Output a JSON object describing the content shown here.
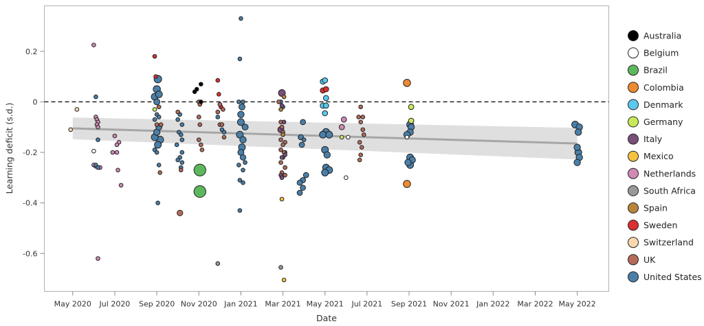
{
  "chart_data": {
    "type": "scatter",
    "title": "",
    "xlabel": "Date",
    "ylabel": "Learning deficit (s.d.)",
    "x_unit": "months since Jan 2020",
    "xlim": [
      2.65,
      29.5
    ],
    "ylim": [
      -0.75,
      0.38
    ],
    "x_ticks": [
      {
        "value": 4,
        "label": "May 2020"
      },
      {
        "value": 6,
        "label": "Jul 2020"
      },
      {
        "value": 8,
        "label": "Sep 2020"
      },
      {
        "value": 10,
        "label": "Nov 2020"
      },
      {
        "value": 12,
        "label": "Jan 2021"
      },
      {
        "value": 14,
        "label": "Mar 2021"
      },
      {
        "value": 16,
        "label": "May 2021"
      },
      {
        "value": 18,
        "label": "Jul 2021"
      },
      {
        "value": 20,
        "label": "Sep 2021"
      },
      {
        "value": 22,
        "label": "Nov 2021"
      },
      {
        "value": 24,
        "label": "Jan 2022"
      },
      {
        "value": 26,
        "label": "Mar 2022"
      },
      {
        "value": 28,
        "label": "May 2022"
      }
    ],
    "y_ticks": [
      {
        "value": 0.2,
        "label": "0.2"
      },
      {
        "value": 0,
        "label": "0"
      },
      {
        "value": -0.2,
        "label": "-0.2"
      },
      {
        "value": -0.4,
        "label": "-0.4"
      },
      {
        "value": -0.6,
        "label": "-0.6"
      }
    ],
    "reference_line": {
      "y": 0,
      "style": "dashed"
    },
    "trend": {
      "x0": 4.0,
      "x1": 28.0,
      "y0": -0.105,
      "y1": -0.165,
      "ci_lower0": -0.148,
      "ci_upper0": -0.062,
      "ci_lower1": -0.228,
      "ci_upper1": -0.103
    },
    "grid": false,
    "legend_position": "right",
    "legend": [
      {
        "name": "Australia",
        "color": "#000000"
      },
      {
        "name": "Belgium",
        "color": "#ffffff"
      },
      {
        "name": "Brazil",
        "color": "#5cb85c"
      },
      {
        "name": "Colombia",
        "color": "#ee8a32"
      },
      {
        "name": "Denmark",
        "color": "#5bc8ef"
      },
      {
        "name": "Germany",
        "color": "#c8ea5a"
      },
      {
        "name": "Italy",
        "color": "#7a4f7a"
      },
      {
        "name": "Mexico",
        "color": "#f5c242"
      },
      {
        "name": "Netherlands",
        "color": "#d08ab4"
      },
      {
        "name": "South Africa",
        "color": "#999999"
      },
      {
        "name": "Spain",
        "color": "#b8863b"
      },
      {
        "name": "Sweden",
        "color": "#d93030"
      },
      {
        "name": "Switzerland",
        "color": "#fad7ae"
      },
      {
        "name": "UK",
        "color": "#b56b5a"
      },
      {
        "name": "United States",
        "color": "#4a7fa8"
      }
    ],
    "series": [
      {
        "name": "Switzerland",
        "points": [
          [
            3.9,
            -0.11,
            1
          ],
          [
            4.2,
            -0.03,
            1
          ]
        ]
      },
      {
        "name": "Netherlands",
        "points": [
          [
            5.0,
            0.225,
            1
          ],
          [
            5.1,
            -0.06,
            1
          ],
          [
            5.15,
            -0.07,
            1
          ],
          [
            5.2,
            -0.08,
            1
          ],
          [
            5.15,
            -0.09,
            1
          ],
          [
            5.2,
            -0.1,
            1
          ],
          [
            5.0,
            -0.25,
            1
          ],
          [
            5.1,
            -0.255,
            1
          ],
          [
            5.3,
            -0.26,
            1
          ],
          [
            6.0,
            -0.135,
            1
          ],
          [
            6.2,
            -0.16,
            1
          ],
          [
            6.1,
            -0.17,
            1
          ],
          [
            5.9,
            -0.2,
            1
          ],
          [
            6.1,
            -0.2,
            1
          ],
          [
            6.15,
            -0.27,
            1
          ],
          [
            6.3,
            -0.33,
            1
          ],
          [
            5.2,
            -0.62,
            1
          ],
          [
            16.9,
            -0.07,
            1.2
          ],
          [
            16.8,
            -0.1,
            1.2
          ]
        ]
      },
      {
        "name": "Belgium",
        "points": [
          [
            5.0,
            -0.195,
            1
          ],
          [
            17.0,
            -0.3,
            1
          ],
          [
            17.1,
            -0.14,
            1
          ],
          [
            19.9,
            -0.14,
            1
          ]
        ]
      },
      {
        "name": "United States",
        "points": [
          [
            5.1,
            0.02,
            1
          ],
          [
            5.2,
            -0.15,
            1
          ],
          [
            5.1,
            -0.25,
            1
          ],
          [
            5.2,
            -0.26,
            1
          ],
          [
            8.05,
            0.09,
            1.8
          ],
          [
            8.0,
            0.05,
            1.7
          ],
          [
            7.9,
            0.02,
            1.6
          ],
          [
            8.1,
            0.03,
            1.6
          ],
          [
            8.0,
            0.0,
            1.4
          ],
          [
            8.0,
            -0.05,
            1
          ],
          [
            8.1,
            -0.06,
            1
          ],
          [
            7.9,
            -0.07,
            1
          ],
          [
            8.1,
            -0.1,
            1.4
          ],
          [
            8.0,
            -0.12,
            1.5
          ],
          [
            7.9,
            -0.14,
            1.6
          ],
          [
            8.15,
            -0.15,
            1.7
          ],
          [
            8.05,
            -0.17,
            1.6
          ],
          [
            7.9,
            -0.19,
            1
          ],
          [
            8.0,
            -0.2,
            1
          ],
          [
            8.1,
            -0.25,
            1
          ],
          [
            8.05,
            -0.4,
            1
          ],
          [
            9.1,
            -0.05,
            1
          ],
          [
            9.0,
            -0.07,
            1
          ],
          [
            9.2,
            -0.09,
            1
          ],
          [
            9.05,
            -0.12,
            1
          ],
          [
            9.15,
            -0.13,
            1
          ],
          [
            9.2,
            -0.15,
            1
          ],
          [
            8.95,
            -0.17,
            1
          ],
          [
            9.2,
            -0.2,
            1
          ],
          [
            9.1,
            -0.22,
            1
          ],
          [
            9.0,
            -0.23,
            1
          ],
          [
            9.2,
            -0.24,
            1
          ],
          [
            9.15,
            -0.26,
            1
          ],
          [
            10.9,
            -0.06,
            1
          ],
          [
            11.1,
            -0.11,
            1
          ],
          [
            11.2,
            -0.12,
            1
          ],
          [
            12.0,
            0.33,
            1
          ],
          [
            11.95,
            0.17,
            1
          ],
          [
            11.9,
            0.0,
            1
          ],
          [
            12.1,
            0.0,
            1
          ],
          [
            12.05,
            -0.02,
            1.4
          ],
          [
            12.0,
            -0.05,
            1.5
          ],
          [
            12.0,
            -0.08,
            1.6
          ],
          [
            12.2,
            -0.1,
            1.4
          ],
          [
            11.95,
            -0.13,
            1.6
          ],
          [
            12.1,
            -0.15,
            1.5
          ],
          [
            12.05,
            -0.18,
            1.6
          ],
          [
            12.0,
            -0.2,
            1.4
          ],
          [
            12.1,
            -0.22,
            1.3
          ],
          [
            12.2,
            -0.24,
            1
          ],
          [
            11.9,
            -0.25,
            1
          ],
          [
            12.1,
            -0.27,
            1
          ],
          [
            11.95,
            -0.31,
            1
          ],
          [
            12.1,
            -0.32,
            1
          ],
          [
            11.95,
            -0.43,
            1
          ],
          [
            13.9,
            0.0,
            1
          ],
          [
            14.0,
            -0.02,
            1
          ],
          [
            13.95,
            -0.1,
            1
          ],
          [
            14.1,
            -0.2,
            1
          ],
          [
            14.95,
            -0.08,
            1.2
          ],
          [
            14.85,
            -0.14,
            1.2
          ],
          [
            15.0,
            -0.15,
            1
          ],
          [
            14.9,
            -0.17,
            1.2
          ],
          [
            15.1,
            -0.29,
            1.2
          ],
          [
            14.95,
            -0.31,
            1.2
          ],
          [
            14.8,
            -0.32,
            1.2
          ],
          [
            14.95,
            -0.34,
            1.2
          ],
          [
            14.8,
            -0.36,
            1.2
          ],
          [
            16.05,
            -0.12,
            1.7
          ],
          [
            15.9,
            -0.13,
            1.6
          ],
          [
            16.2,
            -0.13,
            1.6
          ],
          [
            16.0,
            -0.19,
            1.6
          ],
          [
            16.1,
            -0.21,
            1.5
          ],
          [
            16.05,
            -0.26,
            1.6
          ],
          [
            16.2,
            -0.27,
            1.6
          ],
          [
            16.0,
            -0.28,
            1.6
          ],
          [
            20.05,
            -0.09,
            1.6
          ],
          [
            20.1,
            -0.1,
            1.5
          ],
          [
            20.05,
            -0.12,
            1.5
          ],
          [
            19.9,
            -0.13,
            1.5
          ],
          [
            20.05,
            -0.22,
            1.6
          ],
          [
            20.15,
            -0.23,
            1.5
          ],
          [
            19.95,
            -0.24,
            1.5
          ],
          [
            20.05,
            -0.25,
            1.6
          ],
          [
            27.9,
            -0.09,
            1.6
          ],
          [
            28.1,
            -0.1,
            1.5
          ],
          [
            28.05,
            -0.12,
            1.5
          ],
          [
            28.0,
            -0.18,
            1.5
          ],
          [
            28.05,
            -0.2,
            1.6
          ],
          [
            28.1,
            -0.22,
            1.5
          ],
          [
            28.0,
            -0.24,
            1.5
          ]
        ]
      },
      {
        "name": "Sweden",
        "points": [
          [
            7.9,
            0.18,
            1
          ],
          [
            7.95,
            0.1,
            1
          ],
          [
            10.9,
            0.085,
            1
          ],
          [
            10.95,
            0.03,
            1
          ],
          [
            11.05,
            -0.02,
            1
          ],
          [
            15.9,
            0.045,
            1.2
          ],
          [
            16.05,
            0.05,
            1.2
          ]
        ]
      },
      {
        "name": "Germany",
        "points": [
          [
            7.9,
            -0.03,
            1
          ],
          [
            16.8,
            -0.14,
            1
          ],
          [
            20.1,
            -0.02,
            1.2
          ],
          [
            20.1,
            -0.075,
            1.2
          ]
        ]
      },
      {
        "name": "UK",
        "points": [
          [
            8.1,
            -0.02,
            1
          ],
          [
            8.0,
            -0.09,
            1
          ],
          [
            8.2,
            -0.09,
            1
          ],
          [
            8.15,
            -0.28,
            1
          ],
          [
            9.0,
            -0.04,
            1
          ],
          [
            9.15,
            -0.27,
            1
          ],
          [
            9.1,
            -0.44,
            1.3
          ],
          [
            10.0,
            0.0,
            1
          ],
          [
            10.05,
            -0.01,
            1
          ],
          [
            10.0,
            -0.06,
            1
          ],
          [
            10.05,
            -0.09,
            1
          ],
          [
            10.0,
            -0.15,
            1
          ],
          [
            10.1,
            -0.17,
            1
          ],
          [
            10.15,
            -0.19,
            1
          ],
          [
            11.0,
            -0.01,
            1
          ],
          [
            11.15,
            -0.03,
            1
          ],
          [
            10.9,
            -0.04,
            1
          ],
          [
            11.0,
            -0.09,
            1
          ],
          [
            11.1,
            -0.09,
            1
          ],
          [
            11.2,
            -0.14,
            1
          ],
          [
            13.8,
            0.0,
            1
          ],
          [
            13.9,
            -0.08,
            1
          ],
          [
            13.95,
            -0.1,
            1
          ],
          [
            14.0,
            -0.12,
            1
          ],
          [
            13.9,
            -0.15,
            1
          ],
          [
            14.1,
            -0.16,
            1
          ],
          [
            14.0,
            -0.17,
            1
          ],
          [
            13.9,
            -0.19,
            1
          ],
          [
            14.05,
            -0.2,
            1
          ],
          [
            14.0,
            -0.22,
            1
          ],
          [
            13.9,
            -0.24,
            1
          ],
          [
            14.1,
            -0.26,
            1
          ],
          [
            13.95,
            -0.28,
            1
          ],
          [
            14.1,
            -0.29,
            1
          ],
          [
            17.7,
            -0.02,
            1
          ],
          [
            17.6,
            -0.06,
            1
          ],
          [
            17.8,
            -0.06,
            1
          ],
          [
            17.7,
            -0.08,
            1
          ],
          [
            17.8,
            -0.11,
            1
          ],
          [
            17.85,
            -0.13,
            1
          ],
          [
            17.65,
            -0.16,
            1
          ],
          [
            17.75,
            -0.18,
            1
          ],
          [
            17.7,
            -0.21,
            1
          ],
          [
            17.65,
            -0.23,
            1
          ]
        ]
      },
      {
        "name": "Australia",
        "points": [
          [
            9.8,
            0.04,
            1
          ],
          [
            9.9,
            0.05,
            1
          ],
          [
            10.1,
            0.07,
            1
          ],
          [
            10.1,
            0.0,
            1
          ]
        ]
      },
      {
        "name": "Brazil",
        "points": [
          [
            10.05,
            -0.27,
            2.9
          ],
          [
            10.05,
            -0.355,
            2.9
          ]
        ]
      },
      {
        "name": "South Africa",
        "points": [
          [
            10.9,
            -0.64,
            1
          ],
          [
            13.9,
            -0.655,
            1
          ]
        ]
      },
      {
        "name": "Italy",
        "points": [
          [
            13.95,
            0.035,
            1.6
          ],
          [
            13.95,
            -0.015,
            1
          ],
          [
            13.9,
            -0.11,
            1.4
          ],
          [
            14.05,
            -0.08,
            1
          ],
          [
            13.95,
            -0.22,
            1
          ],
          [
            14.1,
            -0.21,
            1
          ],
          [
            13.9,
            -0.29,
            1
          ],
          [
            13.95,
            -0.3,
            1
          ]
        ]
      },
      {
        "name": "Spain",
        "points": [
          [
            14.05,
            0.02,
            1
          ],
          [
            13.9,
            -0.03,
            1
          ],
          [
            14.0,
            -0.13,
            1
          ]
        ]
      },
      {
        "name": "Mexico",
        "points": [
          [
            13.95,
            -0.385,
            1
          ],
          [
            14.05,
            -0.705,
            1
          ]
        ]
      },
      {
        "name": "Denmark",
        "points": [
          [
            15.9,
            0.08,
            1.2
          ],
          [
            16.0,
            0.085,
            1.2
          ],
          [
            16.05,
            0.015,
            1.2
          ],
          [
            15.9,
            -0.015,
            1.2
          ],
          [
            16.05,
            -0.015,
            1.2
          ],
          [
            16.0,
            -0.045,
            1.2
          ]
        ]
      },
      {
        "name": "Colombia",
        "points": [
          [
            19.9,
            0.075,
            1.7
          ],
          [
            19.9,
            -0.325,
            1.7
          ]
        ]
      }
    ]
  }
}
